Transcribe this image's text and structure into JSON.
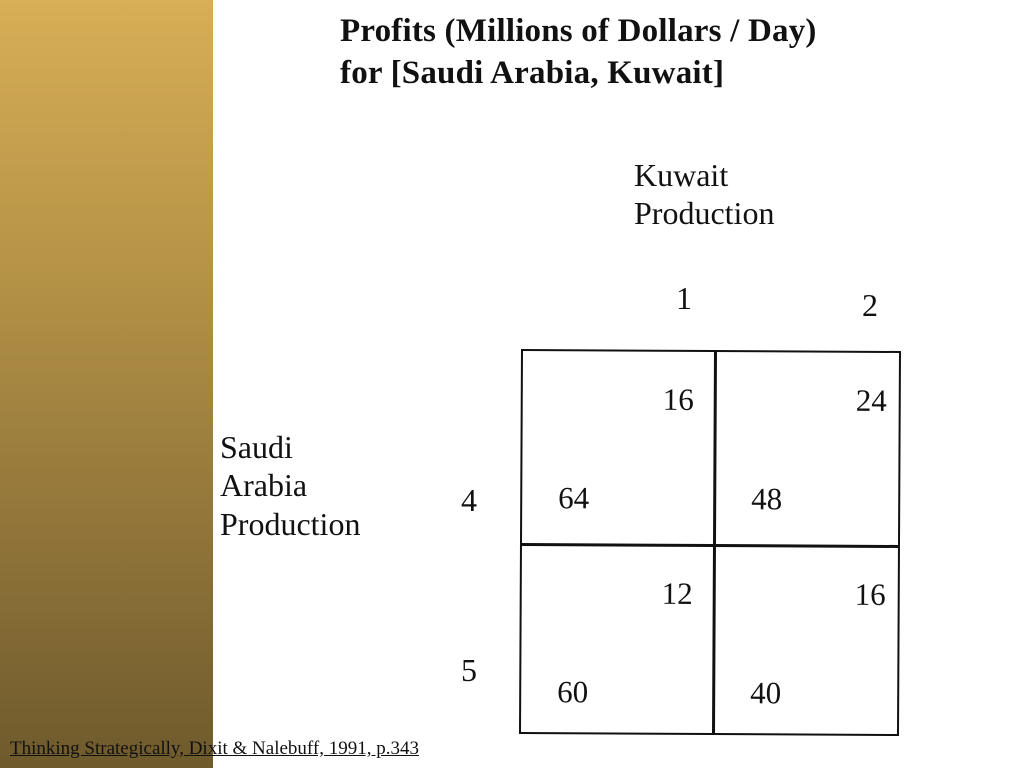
{
  "title": {
    "line1": "Profits (Millions of Dollars / Day)",
    "line2": "for [Saudi Arabia, Kuwait]"
  },
  "columns": {
    "label_line1": "Kuwait",
    "label_line2": "Production",
    "headers": [
      "1",
      "2"
    ]
  },
  "rows": {
    "label_line1": "Saudi",
    "label_line2": "Arabia",
    "label_line3": "Production",
    "headers": [
      "4",
      "5"
    ]
  },
  "cells": [
    [
      {
        "saudi": "64",
        "kuwait": "16"
      },
      {
        "saudi": "48",
        "kuwait": "24"
      }
    ],
    [
      {
        "saudi": "60",
        "kuwait": "12"
      },
      {
        "saudi": "40",
        "kuwait": "16"
      }
    ]
  ],
  "citation": "Thinking Strategically, Dixit & Nalebuff, 1991, p.343",
  "colors": {
    "sidebar_top": "#d8ae56",
    "sidebar_bottom": "#6e5a2c",
    "text": "#111111",
    "background": "#ffffff"
  }
}
